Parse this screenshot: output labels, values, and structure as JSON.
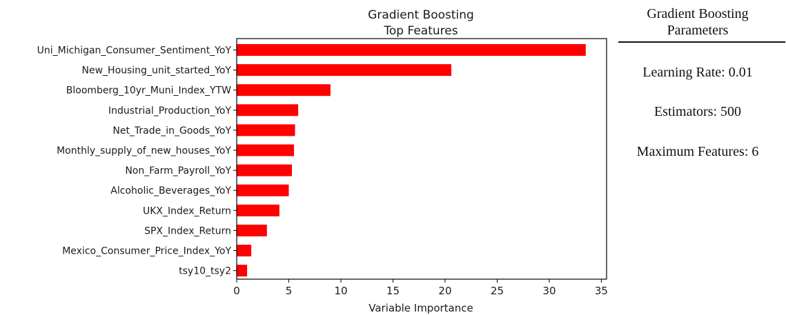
{
  "chart_data": {
    "type": "bar",
    "orientation": "horizontal",
    "title": "Gradient Boosting",
    "subtitle": "Top Features",
    "xlabel": "Variable Importance",
    "ylabel": "",
    "xlim": [
      0,
      35.5
    ],
    "xticks": [
      0,
      5,
      10,
      15,
      20,
      25,
      30,
      35
    ],
    "grid": false,
    "bar_color": "#ff0000",
    "categories": [
      "Uni_Michigan_Consumer_Sentiment_YoY",
      "New_Housing_unit_started_YoY",
      "Bloomberg_10yr_Muni_Index_YTW",
      "Industrial_Production_YoY",
      "Net_Trade_in_Goods_YoY",
      "Monthly_supply_of_new_houses_YoY",
      "Non_Farm_Payroll_YoY",
      "Alcoholic_Beverages_YoY",
      "UKX_Index_Return",
      "SPX_Index_Return",
      "Mexico_Consumer_Price_Index_YoY",
      "tsy10_tsy2"
    ],
    "values": [
      33.5,
      20.6,
      9.0,
      5.9,
      5.6,
      5.5,
      5.3,
      5.0,
      4.1,
      2.9,
      1.4,
      1.0
    ]
  },
  "params": {
    "title_line1": "Gradient Boosting",
    "title_line2": "Parameters",
    "items": [
      "Learning Rate: 0.01",
      "Estimators: 500",
      "Maximum Features: 6"
    ]
  }
}
